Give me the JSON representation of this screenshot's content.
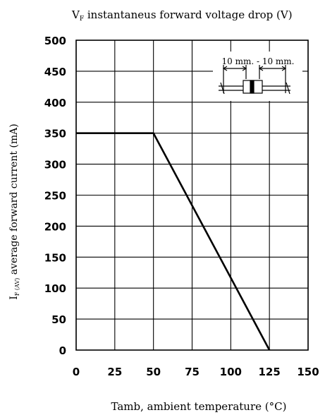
{
  "chart_data": {
    "type": "line",
    "title": "VF instantaneus forward voltage drop (V)",
    "title_parts": {
      "prefix": "V",
      "subscript": "F",
      "text": " instantaneus forward voltage drop (V)"
    },
    "xlabel": "Tamb, ambient temperature (°C)",
    "ylabel": "IF(AV) average forward current (mA)",
    "ylabel_parts": {
      "prefix": "I",
      "subscript": "F (AV)",
      "text": " average forward current (mA)"
    },
    "xlim": [
      0,
      150
    ],
    "ylim": [
      0,
      500
    ],
    "x_ticks": [
      0,
      25,
      50,
      75,
      100,
      125,
      150
    ],
    "y_ticks": [
      0,
      50,
      100,
      150,
      200,
      250,
      300,
      350,
      400,
      450,
      500
    ],
    "grid": true,
    "series": [
      {
        "x": [
          0,
          50,
          125
        ],
        "y": [
          350,
          350,
          0
        ]
      }
    ],
    "inset": {
      "label": "10 mm. - 10 mm."
    }
  }
}
